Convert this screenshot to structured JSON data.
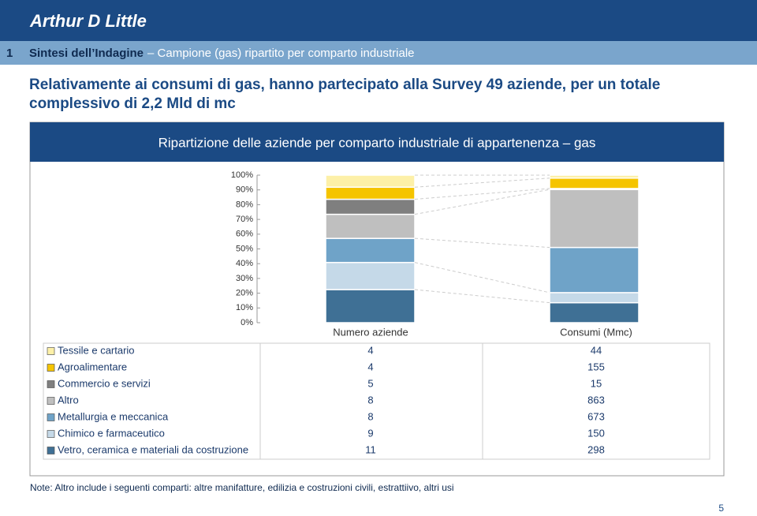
{
  "header": {
    "logo": "Arthur D Little",
    "section_number": "1",
    "section_title": "Sintesi dell’Indagine",
    "section_subtitle": "– Campione (gas) ripartito per comparto industriale",
    "headline": "Relativamente ai consumi di gas, hanno partecipato alla Survey 49 aziende, per un totale complessivo di 2,2 Mld di mc",
    "footnote": "Note: Altro include i seguenti comparti: altre manifatture, edilizia e costruzioni civili, estrattiivo, altri usi",
    "page_number": "5"
  },
  "chart_data": {
    "type": "stacked_percent_bar",
    "title": "Ripartizione delle aziende per comparto industriale di appartenenza – gas",
    "categories": [
      "Numero aziende",
      "Consumi (Mmc)"
    ],
    "series": [
      {
        "name": "Tessile e cartario",
        "color": "#fdf0a8",
        "values": [
          4,
          44
        ]
      },
      {
        "name": "Agroalimentare",
        "color": "#f5c400",
        "values": [
          4,
          155
        ]
      },
      {
        "name": "Commercio e servizi",
        "color": "#7f7f7f",
        "values": [
          5,
          15
        ]
      },
      {
        "name": "Altro",
        "color": "#bfbfbf",
        "values": [
          8,
          863
        ]
      },
      {
        "name": "Metallurgia e meccanica",
        "color": "#6fa3c8",
        "values": [
          8,
          673
        ]
      },
      {
        "name": "Chimico e farmaceutico",
        "color": "#c5d9e8",
        "values": [
          9,
          150
        ]
      },
      {
        "name": "Vetro, ceramica e materiali da costruzione",
        "color": "#3f7095",
        "values": [
          11,
          298
        ]
      }
    ],
    "ylim": [
      0,
      100
    ],
    "yticks": [
      {
        "value": 0,
        "label": "0%"
      },
      {
        "value": 10,
        "label": "10%"
      },
      {
        "value": 20,
        "label": "20%"
      },
      {
        "value": 30,
        "label": "30%"
      },
      {
        "value": 40,
        "label": "40%"
      },
      {
        "value": 50,
        "label": "50%"
      },
      {
        "value": 60,
        "label": "60%"
      },
      {
        "value": 70,
        "label": "70%"
      },
      {
        "value": 80,
        "label": "80%"
      },
      {
        "value": 90,
        "label": "90%"
      },
      {
        "value": 100,
        "label": "100%"
      }
    ]
  }
}
